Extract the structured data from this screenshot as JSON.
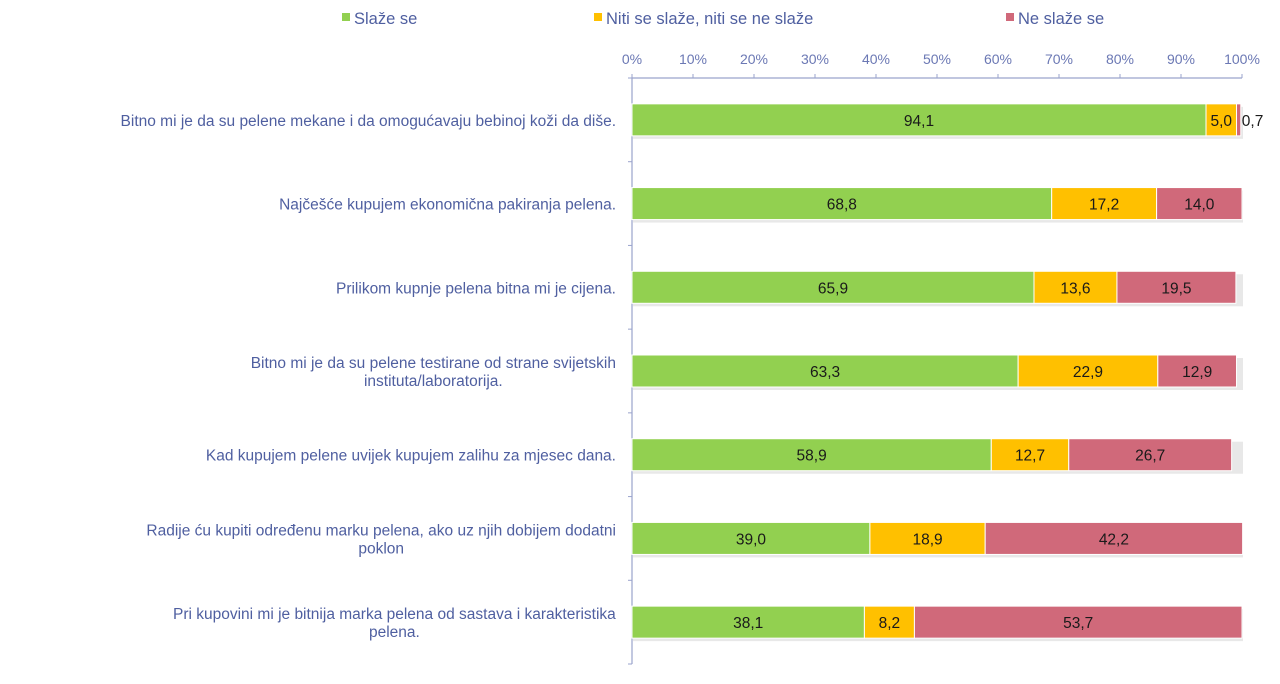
{
  "chart_data": {
    "type": "bar",
    "orientation": "horizontal",
    "stacked": "percent",
    "title": "",
    "xlabel": "",
    "ylabel": "",
    "xlim": [
      0,
      100
    ],
    "x_ticks": [
      "0%",
      "10%",
      "20%",
      "30%",
      "40%",
      "50%",
      "60%",
      "70%",
      "80%",
      "90%",
      "100%"
    ],
    "legend_position": "top",
    "grid": false,
    "categories": [
      [
        "Bitno mi je da su pelene mekane i da omogućavaju bebinoj koži da diše."
      ],
      [
        "Najčešće kupujem ekonomična pakiranja pelena."
      ],
      [
        "Prilikom kupnje pelena bitna mi je cijena."
      ],
      [
        "Bitno mi je da su pelene testirane od strane svijetskih",
        "instituta/laboratorija."
      ],
      [
        "Kad kupujem pelene uvijek kupujem zalihu za mjesec dana."
      ],
      [
        "Radije ću kupiti određenu marku pelena, ako uz njih dobijem dodatni",
        "poklon"
      ],
      [
        "Pri kupovini mi je bitnija marka pelena od sastava i karakteristika",
        "pelena."
      ]
    ],
    "series": [
      {
        "name": "Slaže se",
        "color": "#92d050",
        "values": [
          94.1,
          68.8,
          65.9,
          63.3,
          58.9,
          39.0,
          38.1
        ],
        "labels": [
          "94,1",
          "68,8",
          "65,9",
          "63,3",
          "58,9",
          "39,0",
          "38,1"
        ]
      },
      {
        "name": "Niti se slaže, niti se ne slaže",
        "color": "#ffc000",
        "values": [
          5.0,
          17.2,
          13.6,
          22.9,
          12.7,
          18.9,
          8.2
        ],
        "labels": [
          "5,0",
          "17,2",
          "13,6",
          "22,9",
          "12,7",
          "18,9",
          "8,2"
        ]
      },
      {
        "name": "Ne slaže se",
        "color": "#d0697a",
        "values": [
          0.7,
          14.0,
          19.5,
          12.9,
          26.7,
          42.2,
          53.7
        ],
        "labels": [
          "0,7",
          "14,0",
          "19,5",
          "12,9",
          "26,7",
          "42,2",
          "53,7"
        ]
      }
    ],
    "colors": {
      "axis": "#9aa3cc",
      "text": "#4f5fa0",
      "tick_text": "#6b78b4",
      "shadow": "#d9d9d9"
    }
  }
}
